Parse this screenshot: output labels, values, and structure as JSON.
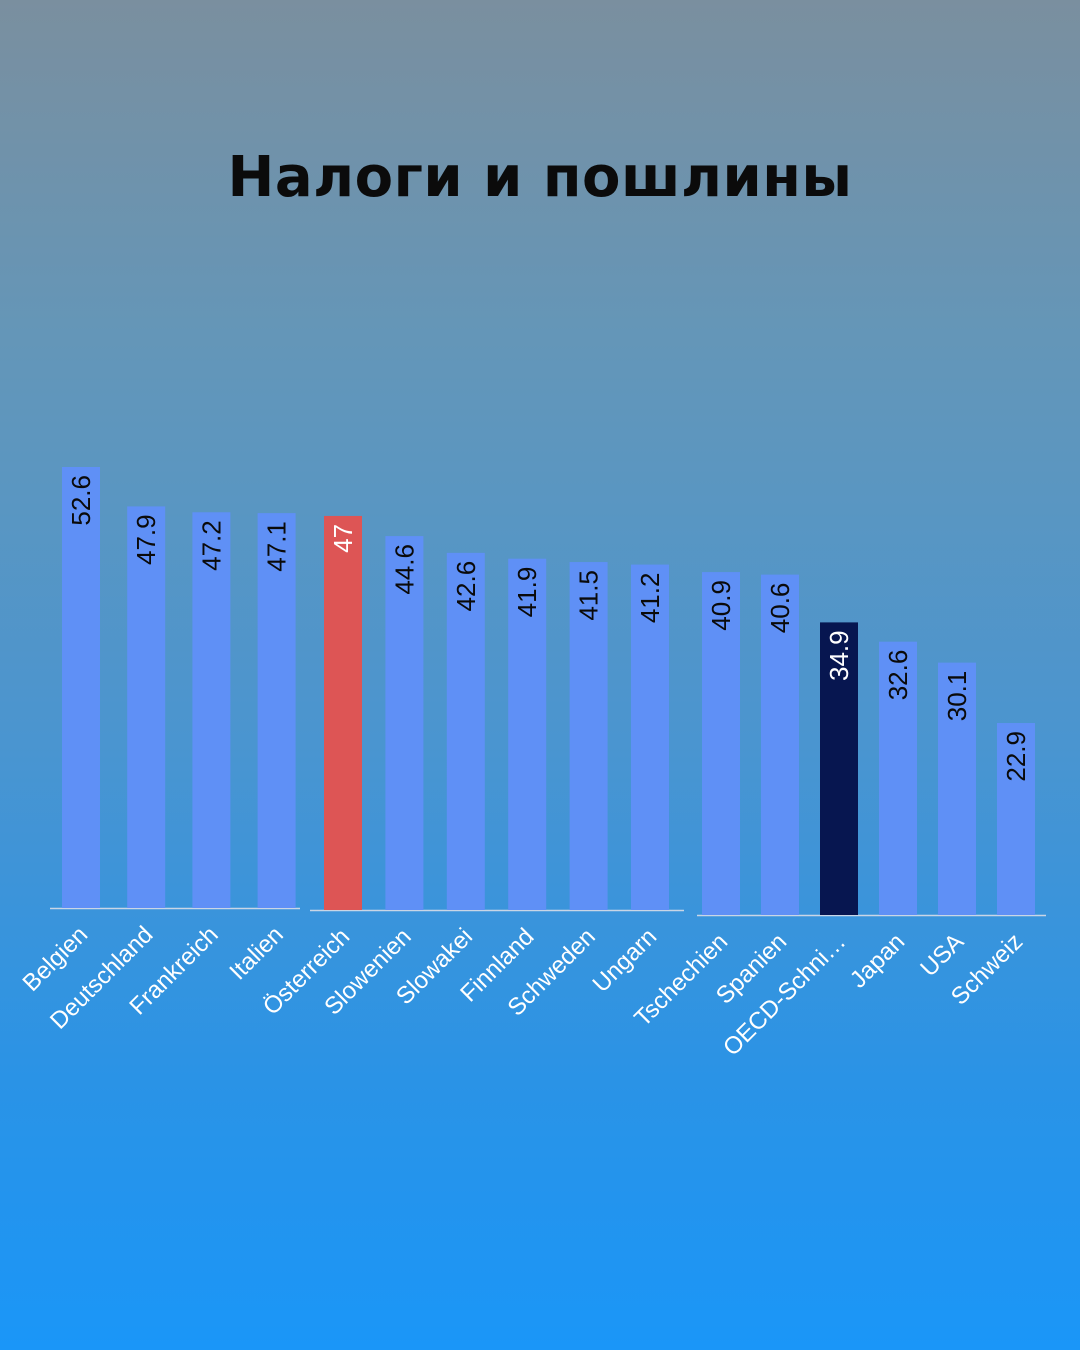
{
  "title": "Налоги и пошлины",
  "colors": {
    "default_bar": "#5f90f6",
    "highlight_bar": "#dd5555",
    "average_bar": "#071650",
    "label_dark": "#0a0a0a",
    "label_light": "#ffffff",
    "category_text": "#ffffff"
  },
  "chart_data": {
    "type": "bar",
    "title": "Налоги и пошлины",
    "xlabel": "",
    "ylabel": "",
    "categories": [
      "Belgien",
      "Deutschland",
      "Frankreich",
      "Italien",
      "Österreich",
      "Slowenien",
      "Slowakei",
      "Finnland",
      "Schweden",
      "Ungarn",
      "Tschechien",
      "Spanien",
      "OECD-Schni…",
      "Japan",
      "USA",
      "Schweiz"
    ],
    "values": [
      52.6,
      47.9,
      47.2,
      47.1,
      47,
      44.6,
      42.6,
      41.9,
      41.5,
      41.2,
      40.9,
      40.6,
      34.9,
      32.6,
      30.1,
      22.9
    ],
    "value_labels": [
      "52.6",
      "47.9",
      "47.2",
      "47.1",
      "47",
      "44.6",
      "42.6",
      "41.9",
      "41.5",
      "41.2",
      "40.9",
      "40.6",
      "34.9",
      "32.6",
      "30.1",
      "22.9"
    ],
    "highlight": [
      "default",
      "default",
      "default",
      "default",
      "highlight",
      "default",
      "default",
      "default",
      "default",
      "default",
      "default",
      "default",
      "average",
      "default",
      "default",
      "default"
    ],
    "grid": false,
    "legend": "none",
    "ylim": [
      0,
      55
    ]
  }
}
